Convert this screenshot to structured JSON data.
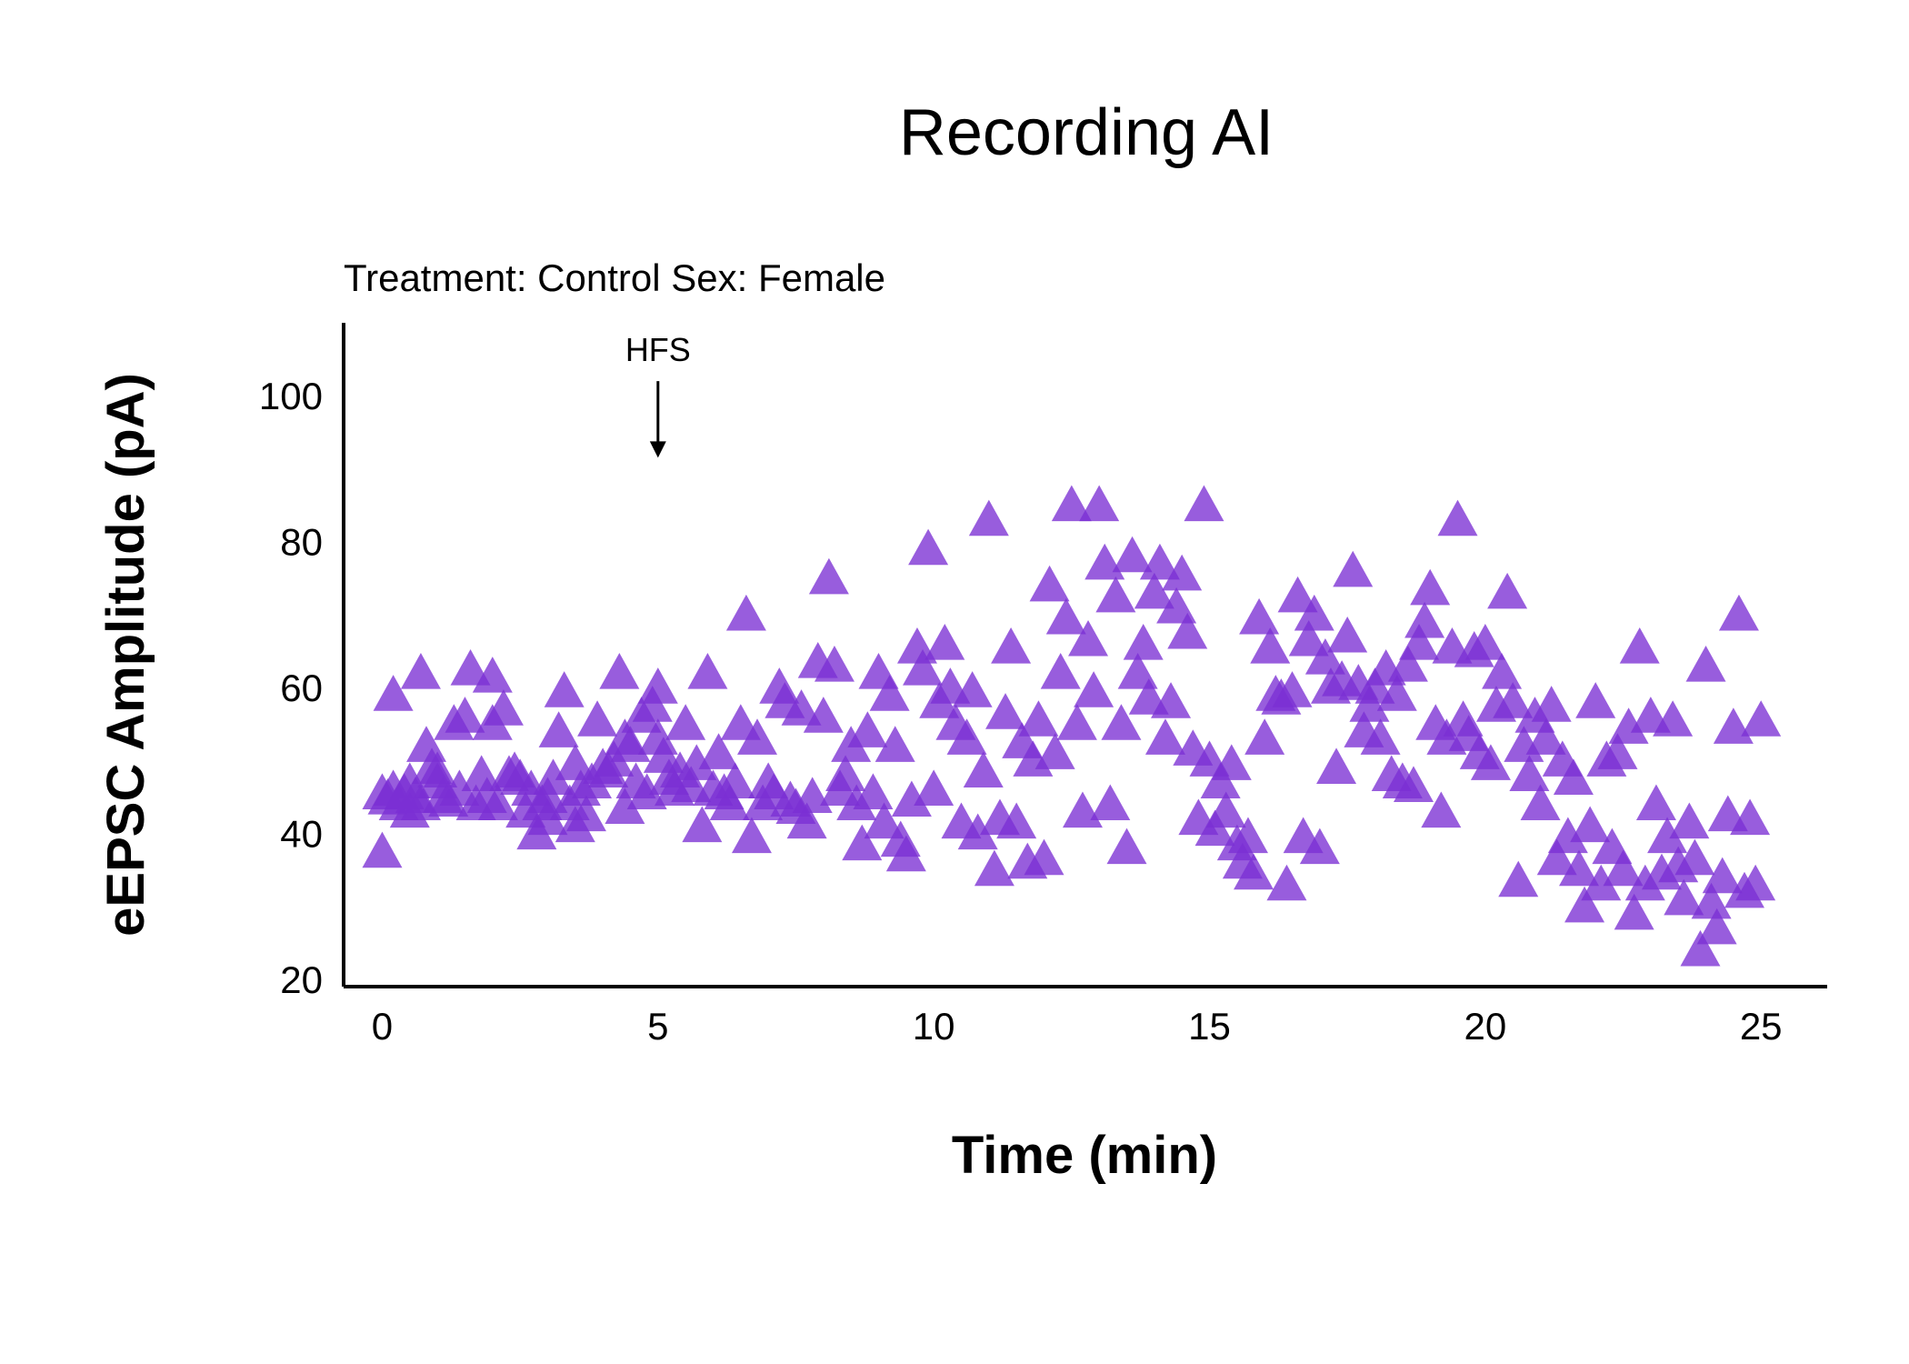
{
  "chart_data": {
    "type": "scatter",
    "title": "Recording AI",
    "subtitle": "Treatment: Control  Sex: Female",
    "xlabel": "Time (min)",
    "ylabel": "eEPSC Amplitude (pA)",
    "xlim": [
      -0.7,
      26.2
    ],
    "ylim": [
      19,
      110
    ],
    "xticks": [
      0,
      5,
      10,
      15,
      20,
      25
    ],
    "yticks": [
      20,
      40,
      60,
      80,
      100
    ],
    "marker": "triangle",
    "color": "#7B2FD4",
    "grid": false,
    "annotation": {
      "label": "HFS",
      "x": 5,
      "arrow_from_y": 102,
      "arrow_to_y": 92
    },
    "points": [
      [
        0.0,
        37.5
      ],
      [
        0.0,
        45.5
      ],
      [
        0.1,
        44.8
      ],
      [
        0.2,
        46.0
      ],
      [
        0.2,
        59.0
      ],
      [
        0.3,
        44.0
      ],
      [
        0.4,
        45.5
      ],
      [
        0.5,
        43.0
      ],
      [
        0.5,
        47.0
      ],
      [
        0.6,
        45.0
      ],
      [
        0.7,
        62.0
      ],
      [
        0.7,
        44.0
      ],
      [
        0.8,
        52.0
      ],
      [
        0.9,
        49.0
      ],
      [
        1.0,
        47.0
      ],
      [
        1.0,
        48.5
      ],
      [
        1.1,
        45.0
      ],
      [
        1.2,
        44.5
      ],
      [
        1.3,
        55.0
      ],
      [
        1.4,
        46.0
      ],
      [
        1.5,
        56.0
      ],
      [
        1.6,
        62.5
      ],
      [
        1.7,
        44.0
      ],
      [
        1.8,
        48.0
      ],
      [
        1.9,
        45.0
      ],
      [
        2.0,
        61.5
      ],
      [
        2.0,
        55.0
      ],
      [
        2.1,
        44.0
      ],
      [
        2.2,
        57.0
      ],
      [
        2.3,
        48.0
      ],
      [
        2.4,
        48.5
      ],
      [
        2.5,
        47.5
      ],
      [
        2.6,
        43.0
      ],
      [
        2.7,
        46.0
      ],
      [
        2.8,
        40.0
      ],
      [
        2.9,
        44.0
      ],
      [
        3.0,
        45.0
      ],
      [
        3.0,
        42.0
      ],
      [
        3.1,
        47.5
      ],
      [
        3.2,
        54.0
      ],
      [
        3.3,
        59.5
      ],
      [
        3.4,
        44.0
      ],
      [
        3.5,
        49.5
      ],
      [
        3.5,
        41.0
      ],
      [
        3.6,
        46.0
      ],
      [
        3.7,
        42.5
      ],
      [
        3.8,
        47.0
      ],
      [
        3.9,
        55.5
      ],
      [
        4.0,
        49.0
      ],
      [
        4.1,
        48.5
      ],
      [
        4.2,
        50.0
      ],
      [
        4.3,
        62.0
      ],
      [
        4.4,
        53.0
      ],
      [
        4.4,
        43.5
      ],
      [
        4.5,
        52.0
      ],
      [
        4.6,
        47.0
      ],
      [
        4.7,
        56.0
      ],
      [
        4.8,
        45.5
      ],
      [
        4.9,
        57.5
      ],
      [
        5.0,
        53.0
      ],
      [
        5.0,
        60.0
      ],
      [
        5.1,
        50.5
      ],
      [
        5.2,
        47.5
      ],
      [
        5.3,
        46.0
      ],
      [
        5.4,
        48.5
      ],
      [
        5.5,
        55.0
      ],
      [
        5.6,
        46.5
      ],
      [
        5.7,
        49.5
      ],
      [
        5.8,
        41.0
      ],
      [
        5.9,
        62.0
      ],
      [
        6.0,
        46.0
      ],
      [
        6.1,
        51.0
      ],
      [
        6.2,
        45.5
      ],
      [
        6.3,
        44.0
      ],
      [
        6.4,
        47.0
      ],
      [
        6.5,
        55.0
      ],
      [
        6.6,
        70.0
      ],
      [
        6.7,
        39.5
      ],
      [
        6.8,
        53.0
      ],
      [
        6.9,
        44.0
      ],
      [
        7.0,
        47.0
      ],
      [
        7.1,
        45.5
      ],
      [
        7.2,
        60.0
      ],
      [
        7.3,
        58.0
      ],
      [
        7.4,
        44.5
      ],
      [
        7.5,
        43.5
      ],
      [
        7.6,
        57.0
      ],
      [
        7.7,
        41.5
      ],
      [
        7.8,
        45.0
      ],
      [
        7.9,
        63.5
      ],
      [
        8.0,
        56.0
      ],
      [
        8.1,
        75.0
      ],
      [
        8.2,
        63.0
      ],
      [
        8.3,
        46.0
      ],
      [
        8.4,
        48.0
      ],
      [
        8.5,
        52.0
      ],
      [
        8.6,
        44.0
      ],
      [
        8.7,
        38.5
      ],
      [
        8.8,
        54.0
      ],
      [
        8.9,
        45.5
      ],
      [
        9.0,
        62.0
      ],
      [
        9.1,
        41.5
      ],
      [
        9.2,
        59.0
      ],
      [
        9.3,
        52.0
      ],
      [
        9.4,
        39.0
      ],
      [
        9.5,
        37.0
      ],
      [
        9.6,
        44.5
      ],
      [
        9.7,
        65.5
      ],
      [
        9.8,
        62.5
      ],
      [
        9.9,
        79.0
      ],
      [
        10.0,
        46.0
      ],
      [
        10.1,
        58.0
      ],
      [
        10.2,
        66.0
      ],
      [
        10.3,
        60.0
      ],
      [
        10.4,
        55.0
      ],
      [
        10.5,
        41.5
      ],
      [
        10.6,
        53.0
      ],
      [
        10.7,
        59.5
      ],
      [
        10.8,
        40.0
      ],
      [
        10.9,
        48.5
      ],
      [
        11.0,
        83.0
      ],
      [
        11.1,
        35.0
      ],
      [
        11.2,
        42.0
      ],
      [
        11.3,
        56.5
      ],
      [
        11.4,
        65.5
      ],
      [
        11.5,
        41.5
      ],
      [
        11.6,
        52.5
      ],
      [
        11.7,
        36.0
      ],
      [
        11.8,
        50.0
      ],
      [
        11.9,
        55.5
      ],
      [
        12.0,
        36.5
      ],
      [
        12.1,
        74.0
      ],
      [
        12.2,
        51.0
      ],
      [
        12.3,
        62.0
      ],
      [
        12.4,
        69.5
      ],
      [
        12.5,
        85.0
      ],
      [
        12.6,
        55.0
      ],
      [
        12.7,
        43.0
      ],
      [
        12.8,
        66.5
      ],
      [
        12.9,
        59.5
      ],
      [
        13.0,
        85.0
      ],
      [
        13.1,
        77.0
      ],
      [
        13.2,
        44.0
      ],
      [
        13.3,
        72.5
      ],
      [
        13.4,
        55.0
      ],
      [
        13.5,
        38.0
      ],
      [
        13.6,
        78.0
      ],
      [
        13.7,
        62.0
      ],
      [
        13.8,
        66.0
      ],
      [
        13.9,
        58.5
      ],
      [
        14.0,
        73.0
      ],
      [
        14.1,
        77.0
      ],
      [
        14.2,
        53.0
      ],
      [
        14.3,
        58.0
      ],
      [
        14.4,
        71.0
      ],
      [
        14.5,
        75.5
      ],
      [
        14.6,
        67.5
      ],
      [
        14.7,
        51.5
      ],
      [
        14.8,
        42.0
      ],
      [
        14.9,
        85.0
      ],
      [
        15.0,
        50.0
      ],
      [
        15.1,
        40.5
      ],
      [
        15.2,
        47.0
      ],
      [
        15.3,
        43.0
      ],
      [
        15.4,
        49.5
      ],
      [
        15.5,
        38.5
      ],
      [
        15.6,
        36.0
      ],
      [
        15.7,
        39.5
      ],
      [
        15.8,
        34.5
      ],
      [
        15.9,
        69.5
      ],
      [
        16.0,
        53.0
      ],
      [
        16.1,
        65.5
      ],
      [
        16.2,
        59.0
      ],
      [
        16.3,
        58.5
      ],
      [
        16.4,
        33.0
      ],
      [
        16.5,
        59.5
      ],
      [
        16.6,
        72.5
      ],
      [
        16.7,
        39.5
      ],
      [
        16.8,
        66.5
      ],
      [
        16.9,
        70.0
      ],
      [
        17.0,
        38.0
      ],
      [
        17.1,
        64.0
      ],
      [
        17.2,
        60.0
      ],
      [
        17.3,
        49.0
      ],
      [
        17.4,
        61.0
      ],
      [
        17.5,
        67.0
      ],
      [
        17.6,
        76.0
      ],
      [
        17.7,
        60.5
      ],
      [
        17.8,
        54.0
      ],
      [
        17.9,
        57.5
      ],
      [
        18.0,
        60.0
      ],
      [
        18.1,
        53.0
      ],
      [
        18.2,
        62.5
      ],
      [
        18.3,
        48.0
      ],
      [
        18.4,
        59.0
      ],
      [
        18.5,
        47.0
      ],
      [
        18.6,
        63.0
      ],
      [
        18.7,
        46.5
      ],
      [
        18.8,
        66.0
      ],
      [
        18.9,
        69.0
      ],
      [
        19.0,
        73.5
      ],
      [
        19.1,
        55.0
      ],
      [
        19.2,
        43.0
      ],
      [
        19.3,
        53.0
      ],
      [
        19.4,
        65.5
      ],
      [
        19.5,
        83.0
      ],
      [
        19.6,
        55.5
      ],
      [
        19.7,
        53.5
      ],
      [
        19.8,
        65.0
      ],
      [
        19.9,
        51.0
      ],
      [
        20.0,
        66.0
      ],
      [
        20.1,
        49.5
      ],
      [
        20.2,
        57.5
      ],
      [
        20.3,
        62.0
      ],
      [
        20.4,
        73.0
      ],
      [
        20.5,
        58.0
      ],
      [
        20.6,
        33.5
      ],
      [
        20.7,
        52.0
      ],
      [
        20.8,
        48.0
      ],
      [
        20.9,
        56.0
      ],
      [
        21.0,
        44.0
      ],
      [
        21.1,
        53.0
      ],
      [
        21.2,
        57.5
      ],
      [
        21.3,
        36.5
      ],
      [
        21.4,
        50.0
      ],
      [
        21.5,
        39.5
      ],
      [
        21.6,
        47.5
      ],
      [
        21.7,
        35.0
      ],
      [
        21.8,
        30.0
      ],
      [
        21.9,
        41.0
      ],
      [
        22.0,
        58.0
      ],
      [
        22.1,
        33.0
      ],
      [
        22.2,
        50.0
      ],
      [
        22.3,
        38.0
      ],
      [
        22.4,
        51.0
      ],
      [
        22.5,
        35.0
      ],
      [
        22.6,
        54.5
      ],
      [
        22.7,
        29.0
      ],
      [
        22.8,
        65.5
      ],
      [
        22.9,
        33.0
      ],
      [
        23.0,
        56.0
      ],
      [
        23.1,
        44.0
      ],
      [
        23.2,
        34.5
      ],
      [
        23.3,
        39.5
      ],
      [
        23.4,
        55.5
      ],
      [
        23.5,
        35.5
      ],
      [
        23.6,
        31.0
      ],
      [
        23.7,
        41.5
      ],
      [
        23.8,
        36.5
      ],
      [
        23.9,
        24.0
      ],
      [
        24.0,
        63.0
      ],
      [
        24.1,
        30.5
      ],
      [
        24.2,
        27.0
      ],
      [
        24.3,
        34.0
      ],
      [
        24.4,
        42.5
      ],
      [
        24.5,
        54.5
      ],
      [
        24.6,
        70.0
      ],
      [
        24.7,
        32.0
      ],
      [
        24.8,
        42.0
      ],
      [
        24.9,
        33.0
      ],
      [
        25.0,
        55.5
      ]
    ]
  }
}
